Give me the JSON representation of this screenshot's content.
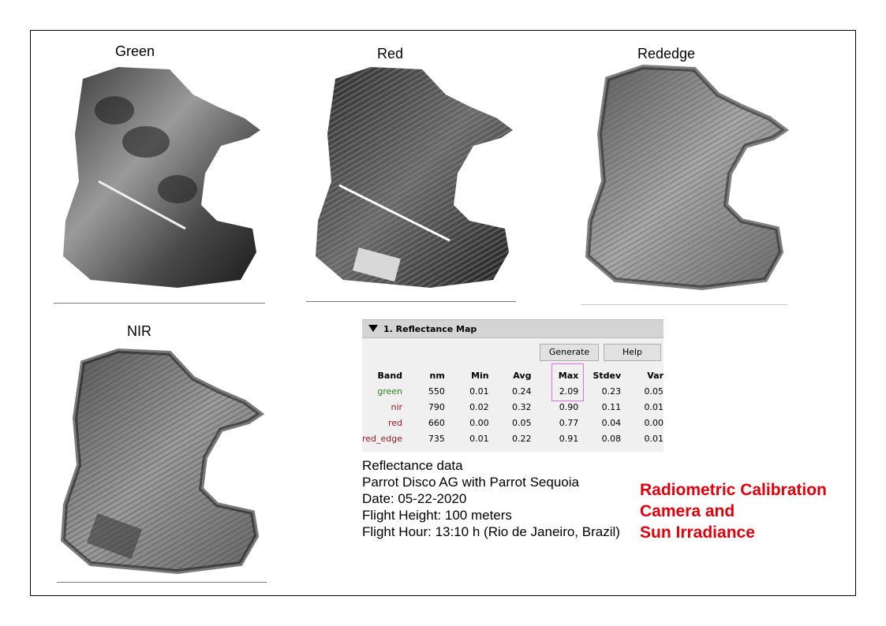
{
  "bands": {
    "green": {
      "title": "Green"
    },
    "red": {
      "title": "Red"
    },
    "rededge": {
      "title": "Rededge"
    },
    "nir": {
      "title": "NIR"
    }
  },
  "panel": {
    "title": "1. Reflectance Map",
    "generate_label": "Generate",
    "help_label": "Help",
    "headers": {
      "band": "Band",
      "nm": "nm",
      "min": "Min",
      "avg": "Avg",
      "max": "Max",
      "stdev": "Stdev",
      "var": "Var"
    },
    "rows": [
      {
        "band": "green",
        "nm": "550",
        "min": "0.01",
        "avg": "0.24",
        "max": "2.09",
        "stdev": "0.23",
        "var": "0.05",
        "color": "#2e7d1e"
      },
      {
        "band": "nir",
        "nm": "790",
        "min": "0.02",
        "avg": "0.32",
        "max": "0.90",
        "stdev": "0.11",
        "var": "0.01",
        "color": "#8b1a1a"
      },
      {
        "band": "red",
        "nm": "660",
        "min": "0.00",
        "avg": "0.05",
        "max": "0.77",
        "stdev": "0.04",
        "var": "0.00",
        "color": "#8b1a1a"
      },
      {
        "band": "red_edge",
        "nm": "735",
        "min": "0.01",
        "avg": "0.22",
        "max": "0.91",
        "stdev": "0.08",
        "var": "0.01",
        "color": "#8b1a1a"
      }
    ]
  },
  "info": {
    "line1": "Reflectance data",
    "line2": "Parrot Disco AG with Parrot Sequoia",
    "line3": "Date: 05-22-2020",
    "line4": "Flight Height: 100 meters",
    "line5": "Flight Hour: 13:10 h (Rio de Janeiro, Brazil)"
  },
  "calibration": {
    "line1": "Radiometric Calibration",
    "line2": "Camera and",
    "line3": "Sun Irradiance",
    "color": "#e3000a"
  }
}
